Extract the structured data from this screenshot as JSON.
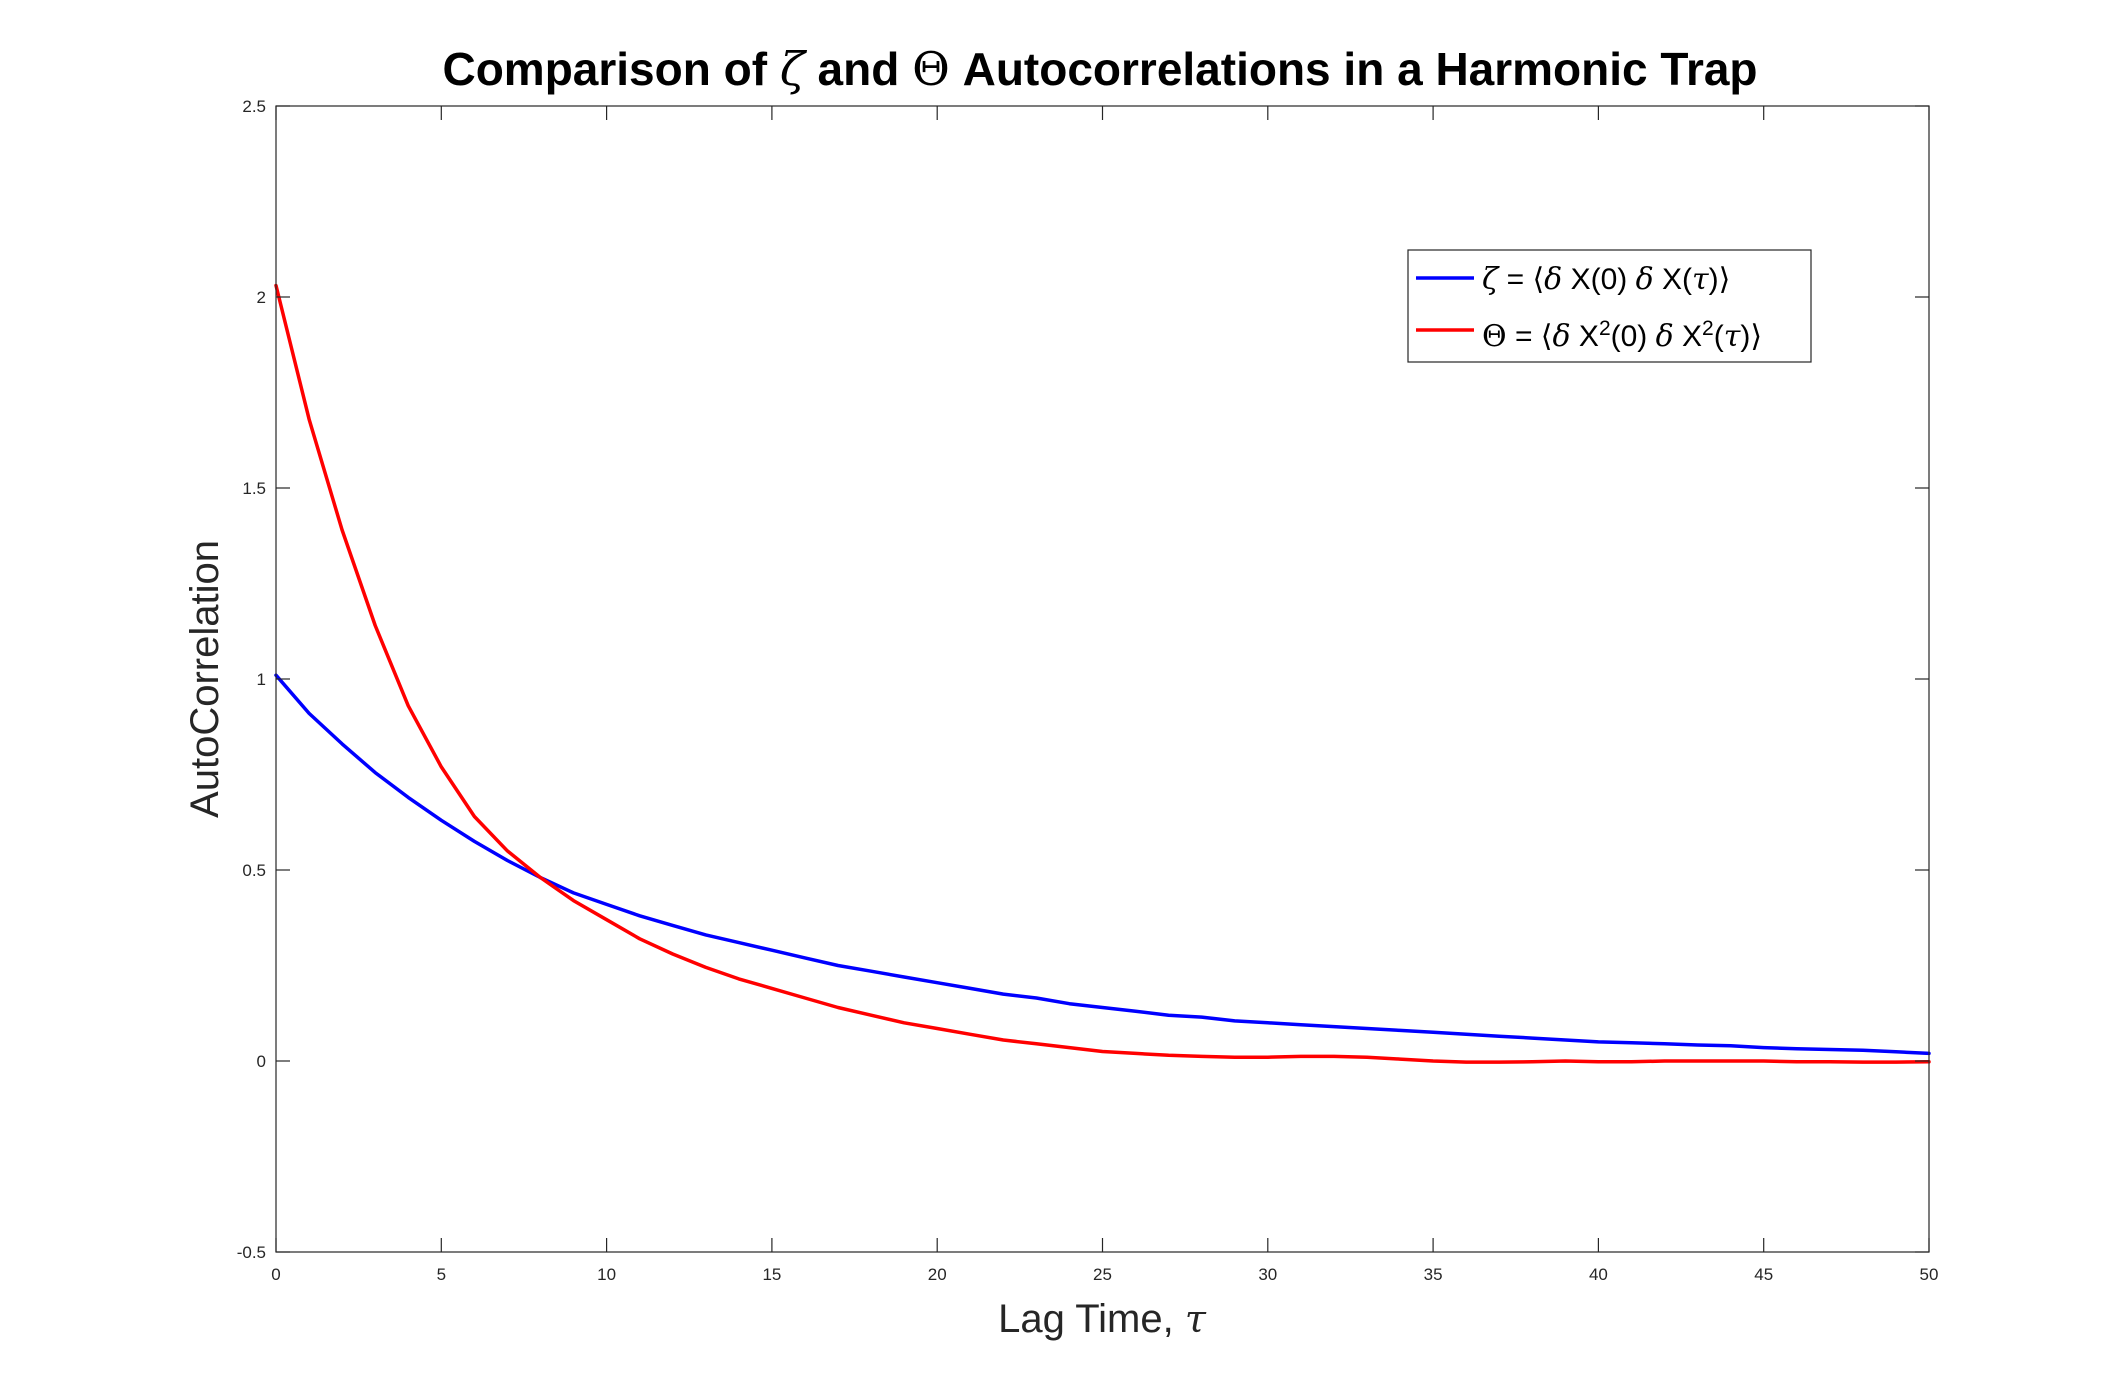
{
  "chart_data": {
    "type": "line",
    "title": {
      "prefix": "Comparison of ",
      "sym1": "ζ",
      "middle": " and ",
      "sym2": "Θ",
      "suffix": " Autocorrelations in a Harmonic Trap"
    },
    "xlabel": {
      "text": "Lag Time, ",
      "sym": "τ"
    },
    "ylabel": "AutoCorrelation",
    "xlim": [
      0,
      50
    ],
    "ylim": [
      -0.5,
      2.5
    ],
    "xticks": [
      0,
      5,
      10,
      15,
      20,
      25,
      30,
      35,
      40,
      45,
      50
    ],
    "yticks": [
      -0.5,
      0,
      0.5,
      1,
      1.5,
      2,
      2.5
    ],
    "grid": false,
    "legend_position": "top-right",
    "series": [
      {
        "name": "ζ = ⟨δ X(0) δ X(τ)⟩",
        "color": "#0000ff",
        "x": [
          0,
          1,
          2,
          3,
          4,
          5,
          6,
          7,
          8,
          9,
          10,
          11,
          12,
          13,
          14,
          15,
          16,
          17,
          18,
          19,
          20,
          21,
          22,
          23,
          24,
          25,
          26,
          27,
          28,
          29,
          30,
          31,
          32,
          33,
          34,
          35,
          36,
          37,
          38,
          39,
          40,
          41,
          42,
          43,
          44,
          45,
          46,
          47,
          48,
          49,
          50
        ],
        "y": [
          1.01,
          0.91,
          0.83,
          0.755,
          0.69,
          0.63,
          0.575,
          0.525,
          0.48,
          0.44,
          0.41,
          0.38,
          0.355,
          0.33,
          0.31,
          0.29,
          0.27,
          0.25,
          0.235,
          0.22,
          0.205,
          0.19,
          0.175,
          0.165,
          0.15,
          0.14,
          0.13,
          0.12,
          0.115,
          0.105,
          0.1,
          0.095,
          0.09,
          0.085,
          0.08,
          0.075,
          0.07,
          0.065,
          0.06,
          0.055,
          0.05,
          0.048,
          0.045,
          0.042,
          0.04,
          0.035,
          0.032,
          0.03,
          0.028,
          0.024,
          0.02
        ]
      },
      {
        "name": "Θ = ⟨δ X²(0) δ X²(τ)⟩",
        "color": "#ff0000",
        "x": [
          0,
          1,
          2,
          3,
          4,
          5,
          6,
          7,
          8,
          9,
          10,
          11,
          12,
          13,
          14,
          15,
          16,
          17,
          18,
          19,
          20,
          21,
          22,
          23,
          24,
          25,
          26,
          27,
          28,
          29,
          30,
          31,
          32,
          33,
          34,
          35,
          36,
          37,
          38,
          39,
          40,
          41,
          42,
          43,
          44,
          45,
          46,
          47,
          48,
          49,
          50
        ],
        "y": [
          2.03,
          1.68,
          1.39,
          1.14,
          0.93,
          0.77,
          0.64,
          0.55,
          0.48,
          0.42,
          0.37,
          0.32,
          0.28,
          0.245,
          0.215,
          0.19,
          0.165,
          0.14,
          0.12,
          0.1,
          0.085,
          0.07,
          0.055,
          0.045,
          0.035,
          0.025,
          0.02,
          0.015,
          0.012,
          0.01,
          0.01,
          0.012,
          0.012,
          0.01,
          0.005,
          0.0,
          -0.003,
          -0.003,
          -0.002,
          0.0,
          -0.002,
          -0.002,
          0.0,
          0.0,
          0.0,
          0.0,
          -0.002,
          -0.002,
          -0.003,
          -0.003,
          -0.002
        ]
      }
    ],
    "legend": [
      {
        "sym": "ζ",
        "eq": " = ⟨",
        "d1": "δ",
        "a1": " X(0) ",
        "d2": "δ",
        "a2": " X(",
        "t": "τ",
        "close": ")⟩",
        "color": "#0000ff"
      },
      {
        "sym": "Θ",
        "eq": " = ⟨",
        "d1": "δ",
        "a1": " X",
        "sup1": "2",
        "b1": "(0) ",
        "d2": "δ",
        "a2": " X",
        "sup2": "2",
        "b2": "(",
        "t": "τ",
        "close": ")⟩",
        "color": "#ff0000"
      }
    ]
  }
}
